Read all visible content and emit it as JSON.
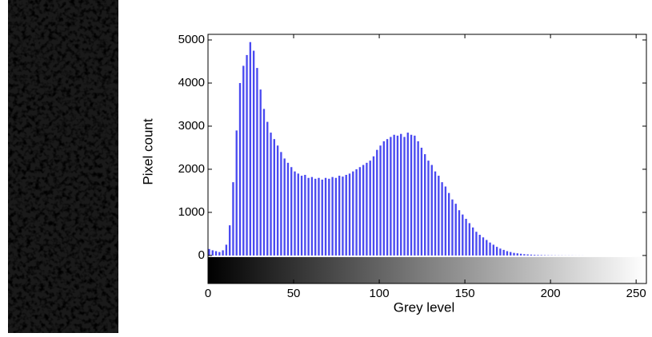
{
  "chart_data": {
    "type": "histogram",
    "xlabel": "Grey level",
    "ylabel": "Pixel count",
    "bins": [
      0,
      2,
      4,
      6,
      8,
      10,
      12,
      14,
      16,
      18,
      20,
      22,
      24,
      26,
      28,
      30,
      32,
      34,
      36,
      38,
      40,
      42,
      44,
      46,
      48,
      50,
      52,
      54,
      56,
      58,
      60,
      62,
      64,
      66,
      68,
      70,
      72,
      74,
      76,
      78,
      80,
      82,
      84,
      86,
      88,
      90,
      92,
      94,
      96,
      98,
      100,
      102,
      104,
      106,
      108,
      110,
      112,
      114,
      116,
      118,
      120,
      122,
      124,
      126,
      128,
      130,
      132,
      134,
      136,
      138,
      140,
      142,
      144,
      146,
      148,
      150,
      152,
      154,
      156,
      158,
      160,
      162,
      164,
      166,
      168,
      170,
      172,
      174,
      176,
      178,
      180,
      182,
      184,
      186,
      188,
      190,
      192,
      194,
      196,
      198,
      200,
      202,
      204,
      206,
      208,
      210,
      212,
      214,
      216,
      218,
      220,
      222,
      224,
      226,
      228,
      230,
      232,
      234,
      236,
      238,
      240,
      242,
      244,
      246,
      248,
      250,
      252,
      254,
      256
    ],
    "counts": [
      150,
      120,
      100,
      80,
      120,
      250,
      700,
      1700,
      2900,
      4000,
      4400,
      4650,
      4950,
      4750,
      4350,
      3850,
      3400,
      3100,
      2850,
      2700,
      2550,
      2400,
      2250,
      2150,
      2050,
      1950,
      1900,
      1850,
      1870,
      1800,
      1820,
      1780,
      1800,
      1760,
      1800,
      1780,
      1820,
      1800,
      1850,
      1830,
      1870,
      1900,
      1950,
      2000,
      2050,
      2100,
      2150,
      2200,
      2300,
      2450,
      2550,
      2650,
      2700,
      2750,
      2800,
      2780,
      2820,
      2750,
      2850,
      2800,
      2780,
      2650,
      2500,
      2350,
      2200,
      2100,
      1950,
      1850,
      1700,
      1600,
      1450,
      1300,
      1200,
      1050,
      950,
      850,
      750,
      650,
      550,
      480,
      420,
      360,
      300,
      250,
      200,
      160,
      130,
      100,
      80,
      60,
      50,
      40,
      30,
      25,
      20,
      15,
      12,
      10,
      8,
      6,
      5,
      4,
      3,
      3,
      2,
      2,
      2,
      1,
      1,
      1,
      0,
      0,
      0,
      0,
      0,
      0,
      0,
      0,
      0,
      0,
      0,
      0,
      0,
      0,
      0,
      0,
      0,
      0
    ],
    "color": "#4a4af0",
    "xlim": [
      0,
      256
    ],
    "ylim": [
      -650,
      5130
    ],
    "xticks": [
      0,
      50,
      100,
      150,
      200,
      250
    ],
    "yticks": [
      0,
      1000,
      2000,
      3000,
      4000,
      5000
    ],
    "grid": false
  }
}
